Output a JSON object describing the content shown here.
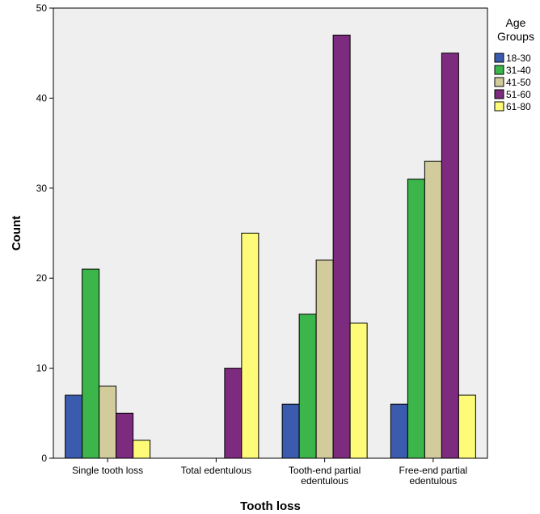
{
  "chart_data": {
    "type": "bar",
    "categories": [
      [
        "Single tooth loss"
      ],
      [
        "Total edentulous"
      ],
      [
        "Tooth-end partial",
        "edentulous"
      ],
      [
        "Free-end partial",
        "edentulous"
      ]
    ],
    "series": [
      {
        "name": "18-30",
        "color": "#3a5bae",
        "values": [
          7,
          0,
          6,
          6
        ]
      },
      {
        "name": "31-40",
        "color": "#3cb54a",
        "values": [
          21,
          0,
          16,
          31
        ]
      },
      {
        "name": "41-50",
        "color": "#d2cb9c",
        "values": [
          8,
          0,
          22,
          33
        ]
      },
      {
        "name": "51-60",
        "color": "#7d2b7e",
        "values": [
          5,
          10,
          47,
          45
        ]
      },
      {
        "name": "61-80",
        "color": "#fdfb78",
        "values": [
          2,
          25,
          15,
          7
        ]
      }
    ],
    "xlabel": "Tooth loss",
    "ylabel": "Count",
    "ylim": [
      0,
      50
    ],
    "yticks": [
      0,
      10,
      20,
      30,
      40,
      50
    ],
    "legend": {
      "title": [
        "Age",
        "Groups"
      ],
      "position": "right"
    },
    "plot_background": "#efefef",
    "bar_outline": "#000000"
  }
}
